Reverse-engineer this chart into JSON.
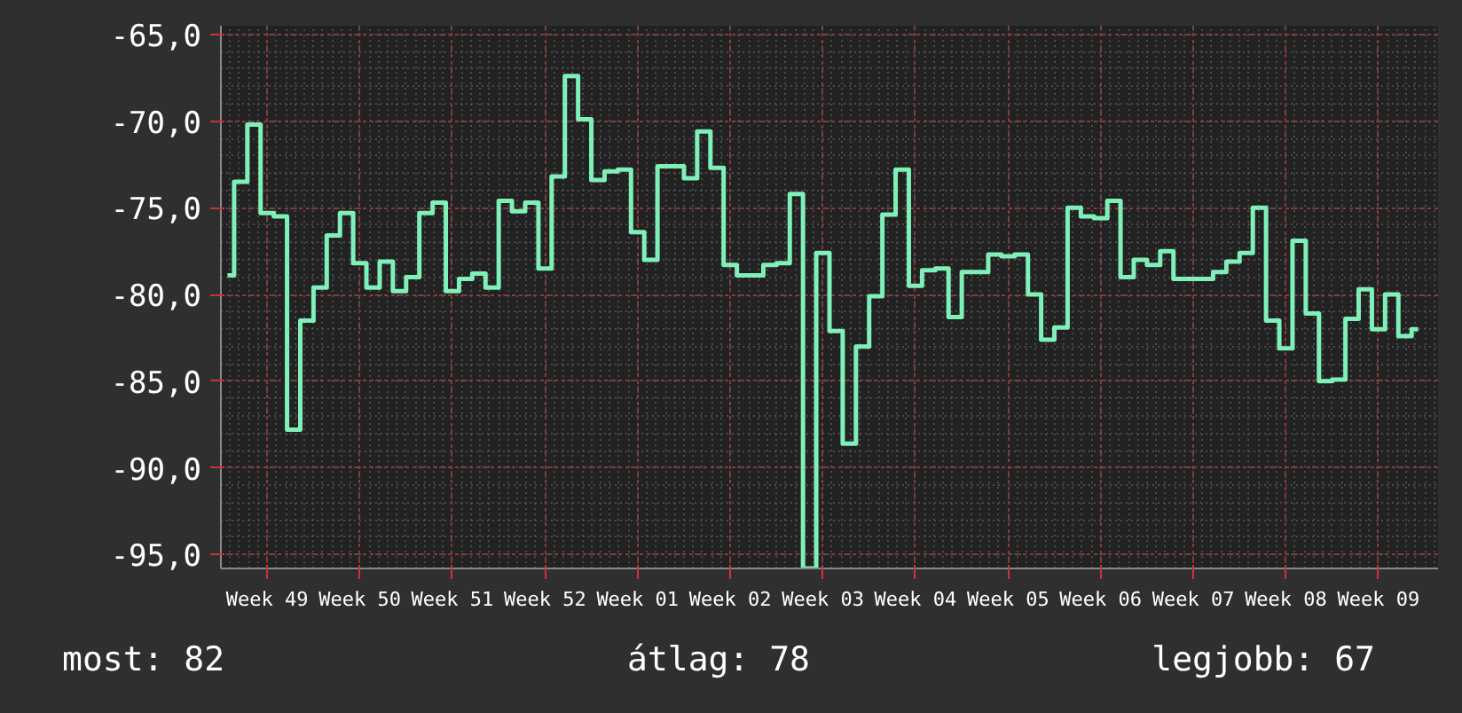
{
  "chart_data": {
    "type": "step",
    "categories": [
      null,
      null,
      null,
      "Week 49",
      null,
      null,
      null,
      null,
      null,
      null,
      "Week 50",
      null,
      null,
      null,
      null,
      null,
      null,
      "Week 51",
      null,
      null,
      null,
      null,
      null,
      null,
      "Week 52",
      null,
      null,
      null,
      null,
      null,
      null,
      "Week 01",
      null,
      null,
      null,
      null,
      null,
      null,
      "Week 02",
      null,
      null,
      null,
      null,
      null,
      null,
      "Week 03",
      null,
      null,
      null,
      null,
      null,
      null,
      "Week 04",
      null,
      null,
      null,
      null,
      null,
      null,
      "Week 05",
      null,
      null,
      null,
      null,
      null,
      null,
      "Week 06",
      null,
      null,
      null,
      null,
      null,
      null,
      "Week 07",
      null,
      null,
      null,
      null,
      null,
      null,
      "Week 08",
      null,
      null,
      null,
      null,
      null,
      null,
      "Week 09",
      null,
      null,
      null
    ],
    "series": [
      {
        "color": "#7ff0b8",
        "values": [
          -78.9,
          -73.5,
          -70.2,
          -75.3,
          -75.5,
          -87.8,
          -81.5,
          -79.6,
          -76.6,
          -75.3,
          -78.2,
          -79.6,
          -78.1,
          -79.8,
          -79.0,
          -75.3,
          -74.7,
          -79.8,
          -79.1,
          -78.8,
          -79.6,
          -74.6,
          -75.2,
          -74.7,
          -78.5,
          -73.2,
          -67.4,
          -69.9,
          -73.4,
          -72.9,
          -72.8,
          -76.4,
          -78.0,
          -72.6,
          -72.6,
          -73.3,
          -70.6,
          -72.7,
          -78.3,
          -78.9,
          -78.9,
          -78.3,
          -78.2,
          -74.2,
          -95.8,
          -77.6,
          -82.1,
          -88.6,
          -83.0,
          -80.1,
          -75.4,
          -72.8,
          -79.5,
          -78.6,
          -78.5,
          -81.3,
          -78.7,
          -78.7,
          -77.7,
          -77.8,
          -77.7,
          -80.0,
          -82.6,
          -81.9,
          -75.0,
          -75.5,
          -75.6,
          -74.6,
          -79.0,
          -78.0,
          -78.3,
          -77.5,
          -79.1,
          -79.1,
          -79.1,
          -78.7,
          -78.1,
          -77.6,
          -75.0,
          -81.5,
          -83.1,
          -76.9,
          -81.1,
          -85.0,
          -84.9,
          -81.4,
          -79.7,
          -82.0,
          -80.0,
          -82.4,
          -82.0
        ]
      }
    ],
    "ylim": [
      -95.8,
      -64.5
    ],
    "yticks": [
      {
        "value": -65,
        "label": "-65,0"
      },
      {
        "value": -70,
        "label": "-70,0"
      },
      {
        "value": -75,
        "label": "-75,0"
      },
      {
        "value": -80,
        "label": "-80,0"
      },
      {
        "value": -85,
        "label": "-85,0"
      },
      {
        "value": -90,
        "label": "-90,0"
      },
      {
        "value": -95,
        "label": "-95,0"
      }
    ],
    "grid": true,
    "marker": "none",
    "line_style": "solid",
    "annotations": [
      "most: 82",
      "átlag: 78",
      "legjobb: 67"
    ]
  }
}
